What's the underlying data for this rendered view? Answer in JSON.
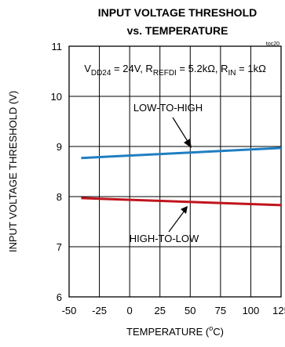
{
  "chart_data": {
    "type": "line",
    "title": "INPUT VOLTAGE THRESHOLD",
    "subtitle": "vs. TEMPERATURE",
    "figure_id": "toc20",
    "xlabel": {
      "main": "TEMPERATURE (",
      "sup": "o",
      "after": "C)"
    },
    "ylabel": "INPUT VOLTAGE THRESHOLD (V)",
    "xlim": [
      -50,
      125
    ],
    "ylim": [
      6,
      11
    ],
    "xticks": [
      -50,
      -25,
      0,
      25,
      50,
      75,
      100,
      125
    ],
    "yticks": [
      6,
      7,
      8,
      9,
      10,
      11
    ],
    "grid": true,
    "conditions": [
      {
        "t": "V"
      },
      {
        "t": "DD24",
        "sub": true
      },
      {
        "t": " = 24V, R"
      },
      {
        "t": "REFDI",
        "sub": true
      },
      {
        "t": " = 5.2kΩ, R"
      },
      {
        "t": "IN",
        "sub": true
      },
      {
        "t": " = 1kΩ"
      }
    ],
    "series": [
      {
        "name": "LOW-TO-HIGH",
        "color": "#1f7fc1",
        "x": [
          -40,
          125
        ],
        "y": [
          8.77,
          8.97
        ]
      },
      {
        "name": "HIGH-TO-LOW",
        "color": "#c0141c",
        "x": [
          -40,
          125
        ],
        "y": [
          7.97,
          7.83
        ]
      }
    ]
  }
}
